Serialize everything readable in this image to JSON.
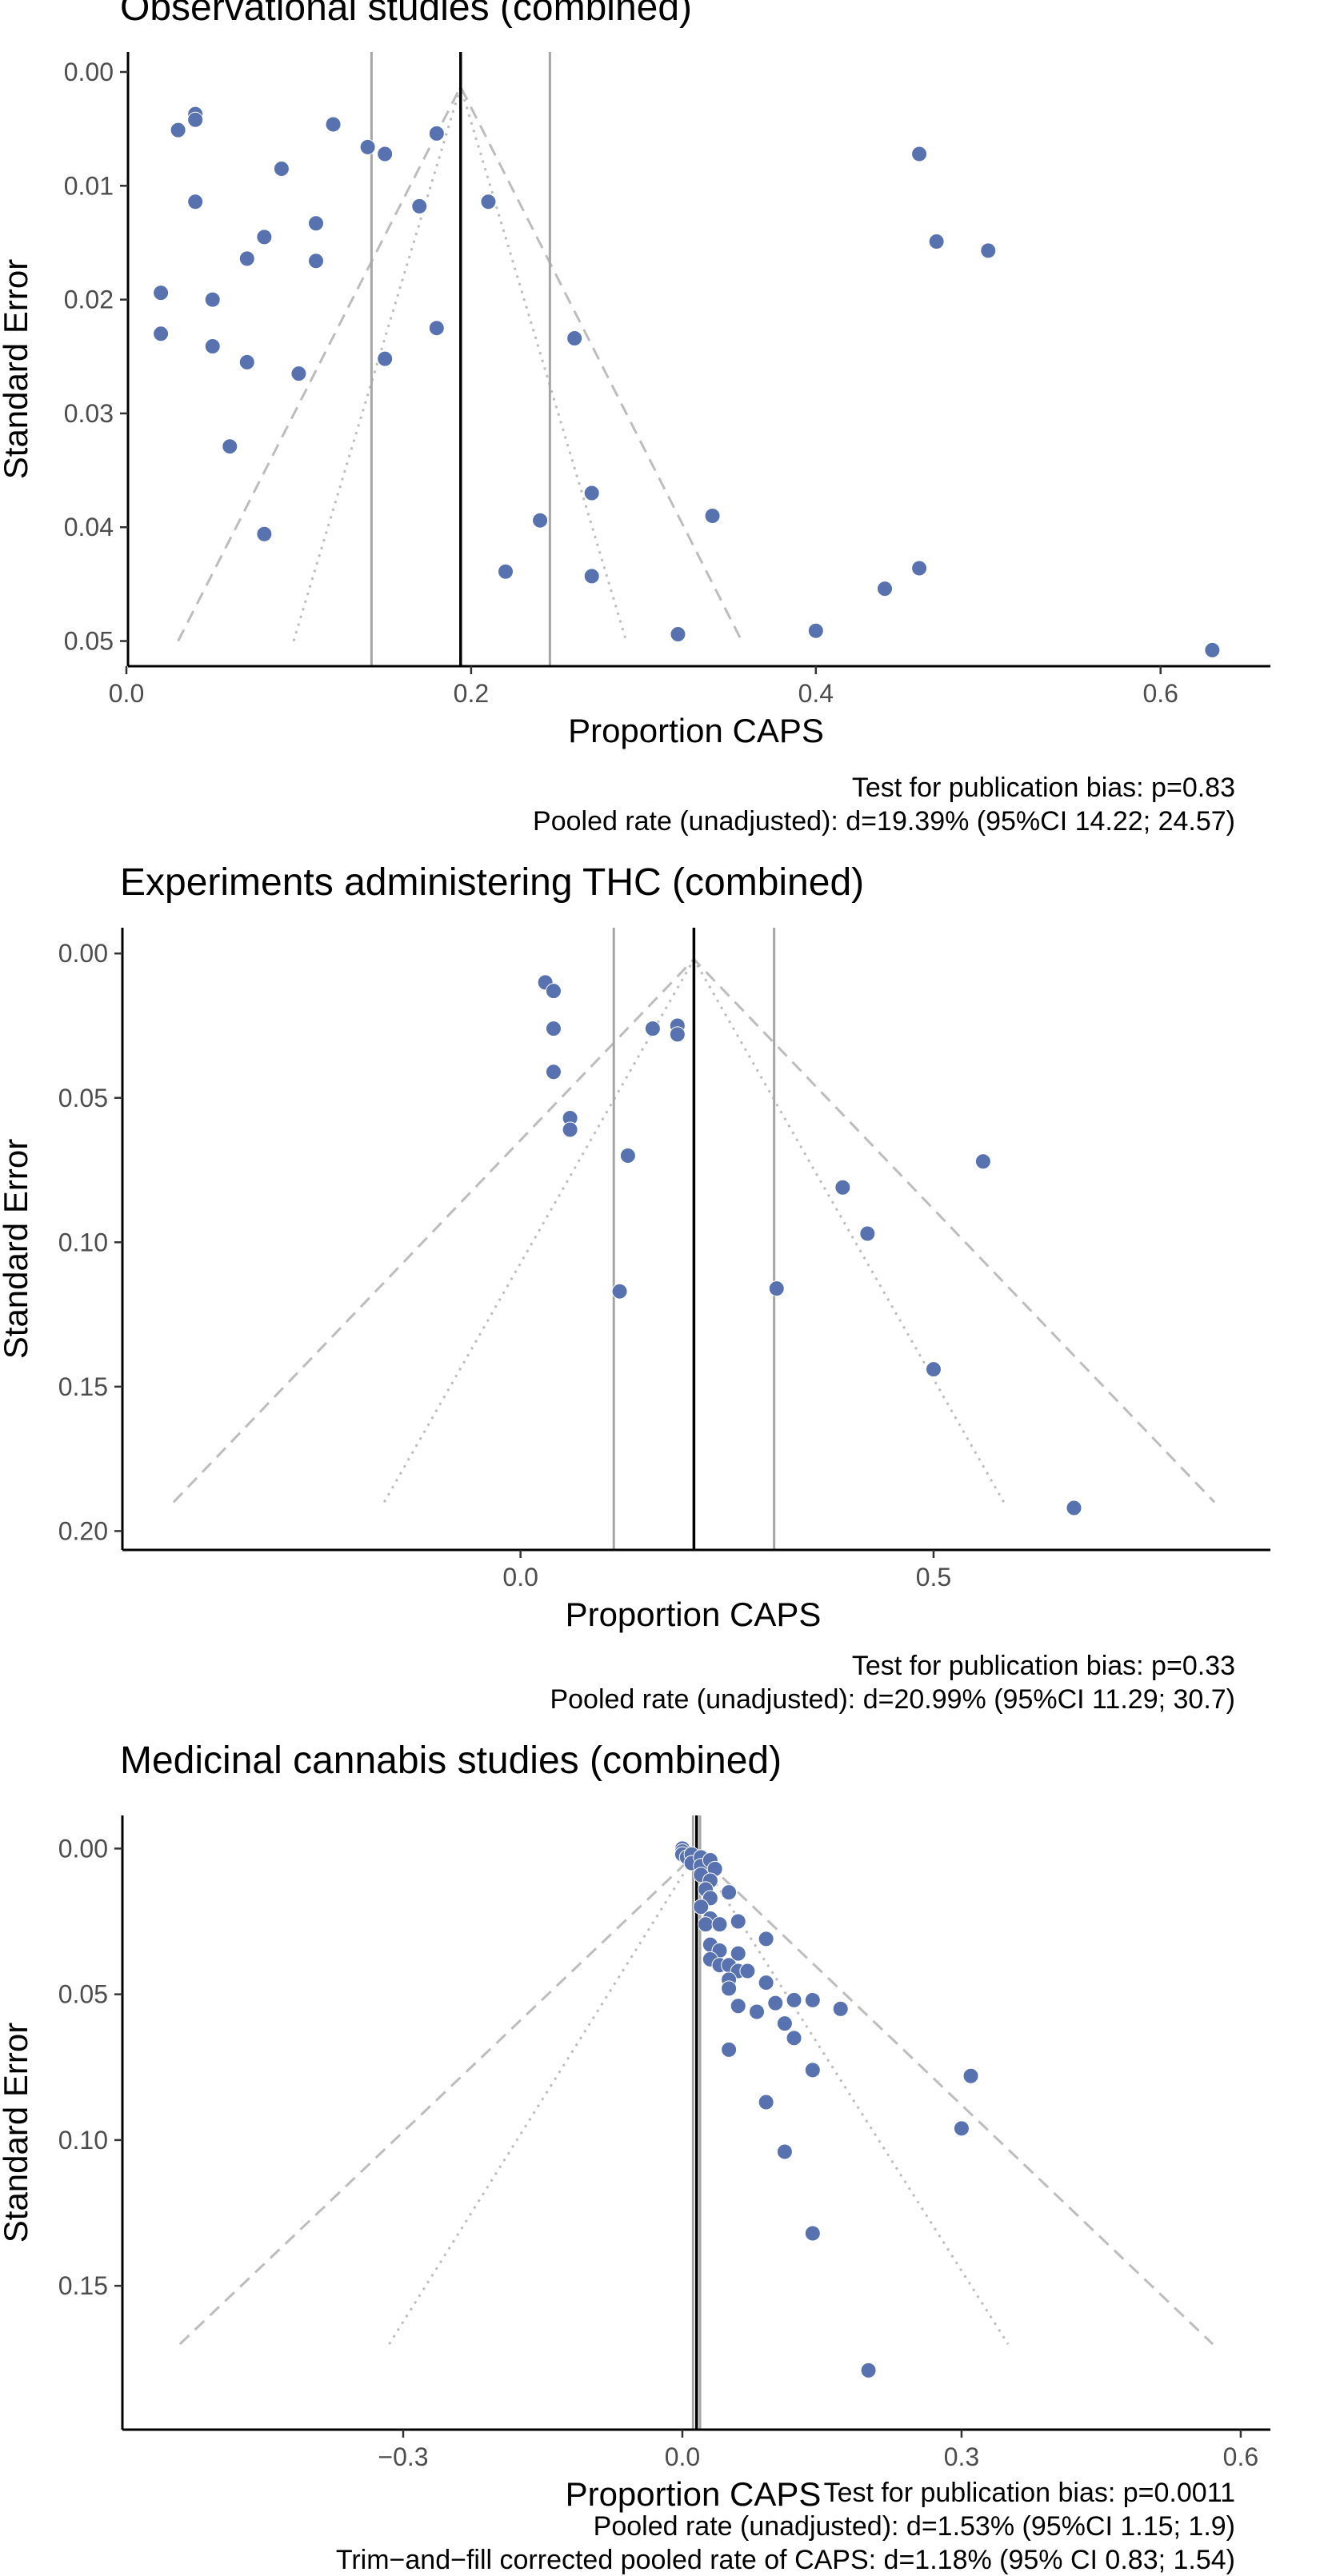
{
  "chart_data": [
    {
      "type": "scatter",
      "subtype": "funnel",
      "title": "Observational studies (combined)",
      "xlabel": "Proportion CAPS",
      "ylabel": "Standard Error",
      "xlim": [
        0.0,
        0.66
      ],
      "ylim": [
        0.0,
        0.052
      ],
      "y_reversed": true,
      "x_ticks": [
        {
          "v": 0.0,
          "label": "0.0"
        },
        {
          "v": 0.2,
          "label": "0.2"
        },
        {
          "v": 0.4,
          "label": "0.4"
        },
        {
          "v": 0.6,
          "label": "0.6"
        }
      ],
      "y_ticks": [
        {
          "v": 0.0,
          "label": "0.00"
        },
        {
          "v": 0.01,
          "label": "0.01"
        },
        {
          "v": 0.02,
          "label": "0.02"
        },
        {
          "v": 0.03,
          "label": "0.03"
        },
        {
          "v": 0.04,
          "label": "0.04"
        },
        {
          "v": 0.05,
          "label": "0.05"
        }
      ],
      "grid": false,
      "pooled_estimate": 0.1939,
      "ci": [
        0.1422,
        0.2457
      ],
      "funnel": {
        "apex_x": 0.1939,
        "apex_y": 0.0013,
        "base_y": 0.05,
        "dashed_x": [
          0.03,
          0.357
        ],
        "dotted_x": [
          0.097,
          0.29
        ]
      },
      "points": [
        {
          "x": 0.04,
          "y": 0.0037
        },
        {
          "x": 0.04,
          "y": 0.0042
        },
        {
          "x": 0.03,
          "y": 0.0051
        },
        {
          "x": 0.12,
          "y": 0.0046
        },
        {
          "x": 0.14,
          "y": 0.0066
        },
        {
          "x": 0.15,
          "y": 0.0072
        },
        {
          "x": 0.18,
          "y": 0.0054
        },
        {
          "x": 0.09,
          "y": 0.0085
        },
        {
          "x": 0.04,
          "y": 0.0114
        },
        {
          "x": 0.17,
          "y": 0.0118
        },
        {
          "x": 0.21,
          "y": 0.0114
        },
        {
          "x": 0.11,
          "y": 0.0133
        },
        {
          "x": 0.08,
          "y": 0.0145
        },
        {
          "x": 0.07,
          "y": 0.0164
        },
        {
          "x": 0.11,
          "y": 0.0166
        },
        {
          "x": 0.02,
          "y": 0.0194
        },
        {
          "x": 0.05,
          "y": 0.02
        },
        {
          "x": 0.02,
          "y": 0.023
        },
        {
          "x": 0.05,
          "y": 0.0241
        },
        {
          "x": 0.07,
          "y": 0.0255
        },
        {
          "x": 0.1,
          "y": 0.0265
        },
        {
          "x": 0.15,
          "y": 0.0252
        },
        {
          "x": 0.18,
          "y": 0.0225
        },
        {
          "x": 0.26,
          "y": 0.0234
        },
        {
          "x": 0.06,
          "y": 0.0329
        },
        {
          "x": 0.08,
          "y": 0.0406
        },
        {
          "x": 0.27,
          "y": 0.037
        },
        {
          "x": 0.24,
          "y": 0.0394
        },
        {
          "x": 0.34,
          "y": 0.039
        },
        {
          "x": 0.22,
          "y": 0.0439
        },
        {
          "x": 0.27,
          "y": 0.0443
        },
        {
          "x": 0.32,
          "y": 0.0494
        },
        {
          "x": 0.4,
          "y": 0.0491
        },
        {
          "x": 0.44,
          "y": 0.0454
        },
        {
          "x": 0.46,
          "y": 0.0436
        },
        {
          "x": 0.46,
          "y": 0.0072
        },
        {
          "x": 0.47,
          "y": 0.0149
        },
        {
          "x": 0.5,
          "y": 0.0157
        },
        {
          "x": 0.63,
          "y": 0.0508
        }
      ],
      "notes": [
        "Test for publication bias: p=0.83",
        "Pooled rate (unadjusted): d=19.39% (95%CI 14.22; 24.57)"
      ]
    },
    {
      "type": "scatter",
      "subtype": "funnel",
      "title": "Experiments administering THC (combined)",
      "xlabel": "Proportion CAPS",
      "ylabel": "Standard Error",
      "xlim": [
        -0.48,
        0.9
      ],
      "ylim": [
        -0.002,
        0.201
      ],
      "y_reversed": true,
      "x_ticks": [
        {
          "v": 0.0,
          "label": "0.0"
        },
        {
          "v": 0.5,
          "label": "0.5"
        }
      ],
      "y_ticks": [
        {
          "v": 0.0,
          "label": "0.00"
        },
        {
          "v": 0.05,
          "label": "0.05"
        },
        {
          "v": 0.1,
          "label": "0.10"
        },
        {
          "v": 0.15,
          "label": "0.15"
        },
        {
          "v": 0.2,
          "label": "0.20"
        }
      ],
      "grid": false,
      "pooled_estimate": 0.2099,
      "ci": [
        0.1129,
        0.307
      ],
      "funnel": {
        "apex_x": 0.2099,
        "apex_y": 0.002,
        "base_y": 0.19,
        "dashed_x": [
          -0.42,
          0.84
        ],
        "dotted_x": [
          -0.165,
          0.585
        ]
      },
      "points": [
        {
          "x": 0.03,
          "y": 0.01
        },
        {
          "x": 0.04,
          "y": 0.013
        },
        {
          "x": 0.04,
          "y": 0.026
        },
        {
          "x": 0.04,
          "y": 0.041
        },
        {
          "x": 0.06,
          "y": 0.057
        },
        {
          "x": 0.06,
          "y": 0.061
        },
        {
          "x": 0.13,
          "y": 0.07
        },
        {
          "x": 0.16,
          "y": 0.026
        },
        {
          "x": 0.19,
          "y": 0.025
        },
        {
          "x": 0.19,
          "y": 0.028
        },
        {
          "x": 0.12,
          "y": 0.117
        },
        {
          "x": 0.31,
          "y": 0.116
        },
        {
          "x": 0.39,
          "y": 0.081
        },
        {
          "x": 0.42,
          "y": 0.097
        },
        {
          "x": 0.56,
          "y": 0.072
        },
        {
          "x": 0.5,
          "y": 0.144
        },
        {
          "x": 0.67,
          "y": 0.192
        }
      ],
      "notes": [
        "Test for publication bias: p=0.33",
        "Pooled rate (unadjusted): d=20.99% (95%CI 11.29; 30.7)"
      ]
    },
    {
      "type": "scatter",
      "subtype": "funnel",
      "title": "Medicinal cannabis studies (combined)",
      "xlabel": "Proportion CAPS",
      "ylabel": "Standard Error",
      "xlim": [
        -0.6,
        0.625
      ],
      "ylim": [
        -0.0045,
        0.187
      ],
      "y_reversed": true,
      "x_ticks": [
        {
          "v": -0.3,
          "label": "−0.3"
        },
        {
          "v": 0.0,
          "label": "0.0"
        },
        {
          "v": 0.3,
          "label": "0.3"
        },
        {
          "v": 0.6,
          "label": "0.6"
        }
      ],
      "y_ticks": [
        {
          "v": 0.0,
          "label": "0.00"
        },
        {
          "v": 0.05,
          "label": "0.05"
        },
        {
          "v": 0.1,
          "label": "0.10"
        },
        {
          "v": 0.15,
          "label": "0.15"
        }
      ],
      "grid": false,
      "pooled_estimate": 0.0153,
      "ci": [
        0.0115,
        0.019
      ],
      "funnel": {
        "apex_x": 0.0153,
        "apex_y": 0.0015,
        "base_y": 0.17,
        "dashed_x": [
          -0.54,
          0.57
        ],
        "dotted_x": [
          -0.315,
          0.35
        ]
      },
      "points": [
        {
          "x": 0.0,
          "y": 0.0
        },
        {
          "x": 0.0,
          "y": 0.001
        },
        {
          "x": 0.0,
          "y": 0.002
        },
        {
          "x": 0.005,
          "y": 0.003
        },
        {
          "x": 0.01,
          "y": 0.002
        },
        {
          "x": 0.01,
          "y": 0.005
        },
        {
          "x": 0.02,
          "y": 0.003
        },
        {
          "x": 0.02,
          "y": 0.006
        },
        {
          "x": 0.03,
          "y": 0.004
        },
        {
          "x": 0.035,
          "y": 0.007
        },
        {
          "x": 0.02,
          "y": 0.009
        },
        {
          "x": 0.03,
          "y": 0.011
        },
        {
          "x": 0.025,
          "y": 0.014
        },
        {
          "x": 0.03,
          "y": 0.017
        },
        {
          "x": 0.05,
          "y": 0.015
        },
        {
          "x": 0.02,
          "y": 0.02
        },
        {
          "x": 0.03,
          "y": 0.024
        },
        {
          "x": 0.025,
          "y": 0.026
        },
        {
          "x": 0.04,
          "y": 0.026
        },
        {
          "x": 0.06,
          "y": 0.025
        },
        {
          "x": 0.03,
          "y": 0.033
        },
        {
          "x": 0.04,
          "y": 0.035
        },
        {
          "x": 0.03,
          "y": 0.038
        },
        {
          "x": 0.04,
          "y": 0.04
        },
        {
          "x": 0.05,
          "y": 0.04
        },
        {
          "x": 0.06,
          "y": 0.036
        },
        {
          "x": 0.06,
          "y": 0.042
        },
        {
          "x": 0.07,
          "y": 0.042
        },
        {
          "x": 0.05,
          "y": 0.045
        },
        {
          "x": 0.05,
          "y": 0.048
        },
        {
          "x": 0.09,
          "y": 0.031
        },
        {
          "x": 0.09,
          "y": 0.046
        },
        {
          "x": 0.06,
          "y": 0.054
        },
        {
          "x": 0.08,
          "y": 0.056
        },
        {
          "x": 0.1,
          "y": 0.053
        },
        {
          "x": 0.12,
          "y": 0.052
        },
        {
          "x": 0.14,
          "y": 0.052
        },
        {
          "x": 0.17,
          "y": 0.055
        },
        {
          "x": 0.11,
          "y": 0.06
        },
        {
          "x": 0.12,
          "y": 0.065
        },
        {
          "x": 0.05,
          "y": 0.069
        },
        {
          "x": 0.14,
          "y": 0.076
        },
        {
          "x": 0.09,
          "y": 0.087
        },
        {
          "x": 0.11,
          "y": 0.104
        },
        {
          "x": 0.31,
          "y": 0.078
        },
        {
          "x": 0.3,
          "y": 0.096
        },
        {
          "x": 0.14,
          "y": 0.132
        },
        {
          "x": 0.2,
          "y": 0.179
        }
      ],
      "notes": [
        "Test for publication bias: p=0.0011",
        "Pooled rate (unadjusted): d=1.53% (95%CI 1.15; 1.9)",
        "Trim−and−fill corrected pooled rate of CAPS: d=1.18% (95% CI 0.83; 1.54)"
      ]
    }
  ]
}
